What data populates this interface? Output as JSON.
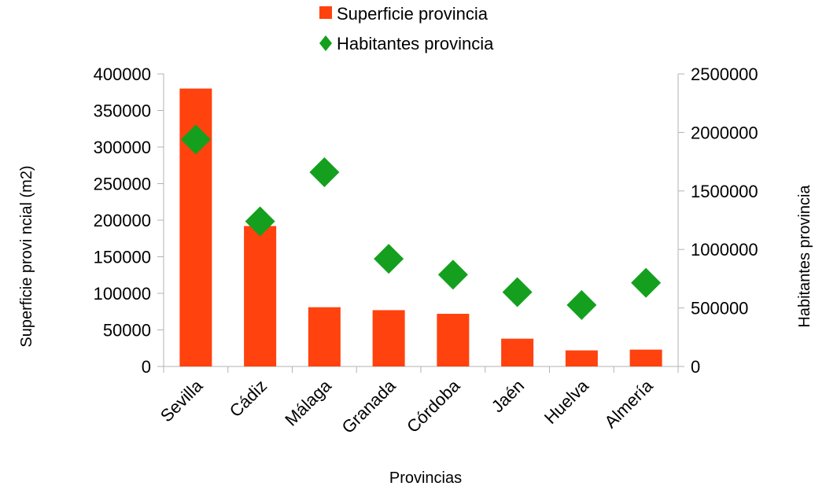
{
  "chart_data": {
    "type": "bar",
    "categories": [
      "Sevilla",
      "Cádiz",
      "Málaga",
      "Granada",
      "Córdoba",
      "Jaén",
      "Huelva",
      "Almería"
    ],
    "series": [
      {
        "name": "Superficie provincia",
        "type": "bar",
        "axis": "left",
        "color": "#ff420e",
        "values": [
          380000,
          192000,
          81000,
          77000,
          72000,
          38000,
          22000,
          23000
        ]
      },
      {
        "name": "Habitantes provincia",
        "type": "scatter",
        "marker": "diamond",
        "axis": "right",
        "color": "#14a01e",
        "values": [
          1940000,
          1240000,
          1660000,
          920000,
          785000,
          635000,
          525000,
          715000
        ]
      }
    ],
    "xlabel": "Provincias",
    "ylabel": "Superficie provi ncial (m2)",
    "y2label": "Habitantes provincia",
    "ylim": [
      0,
      400000
    ],
    "y2lim": [
      0,
      2500000
    ],
    "yticks": [
      "0",
      "50000",
      "100000",
      "150000",
      "200000",
      "250000",
      "300000",
      "350000",
      "400000"
    ],
    "y2ticks": [
      "0",
      "500000",
      "1000000",
      "1500000",
      "2000000",
      "2500000"
    ],
    "grid": false,
    "legend_position": "top"
  }
}
